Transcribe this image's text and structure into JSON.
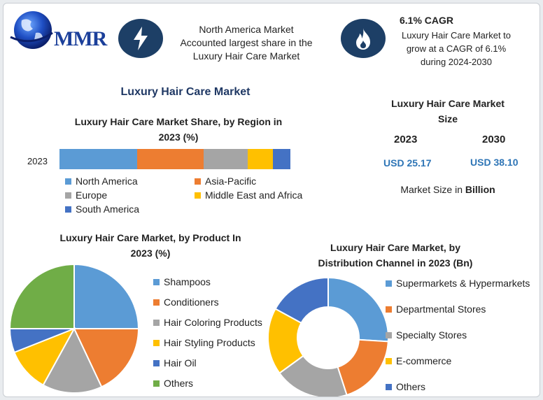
{
  "header": {
    "logo_text": "MMR",
    "north_america_text": [
      "North America Market",
      "Accounted largest share in the",
      "Luxury Hair Care Market"
    ],
    "cagr_title": "6.1% CAGR",
    "cagr_text": [
      "Luxury Hair Care Market to",
      "grow at a CAGR of 6.1%",
      "during 2024-2030"
    ],
    "icons": [
      "globe-icon",
      "lightning-icon",
      "flame-icon"
    ],
    "badge_color": "#1d3f66"
  },
  "main_title": "Luxury Hair Care Market",
  "region": {
    "title_line1": "Luxury Hair Care Market Share, by Region in",
    "title_line2": "2023 (%)",
    "year_label": "2023"
  },
  "market_size": {
    "title_line1": "Luxury Hair Care Market",
    "title_line2": "Size",
    "year1": "2023",
    "year2": "2030",
    "value1": "USD 25.17",
    "value2": "USD 38.10",
    "unit_prefix": "Market Size in ",
    "unit_bold": "Billion"
  },
  "product": {
    "title_line1": "Luxury Hair Care Market, by Product In",
    "title_line2": "2023 (%)"
  },
  "distribution": {
    "title_line1": "Luxury Hair Care Market, by",
    "title_line2": "Distribution Channel in 2023 (Bn)"
  },
  "chart_data": [
    {
      "type": "bar",
      "orientation": "horizontal-stacked",
      "categories": [
        "2023"
      ],
      "series": [
        {
          "name": "North America",
          "values": [
            33.5
          ],
          "color": "#5b9bd5"
        },
        {
          "name": "Asia-Pacific",
          "values": [
            29.0
          ],
          "color": "#ed7d31"
        },
        {
          "name": "Europe",
          "values": [
            19.0
          ],
          "color": "#a5a5a5"
        },
        {
          "name": "Middle East and Africa",
          "values": [
            11.0
          ],
          "color": "#ffc000"
        },
        {
          "name": "South America",
          "values": [
            7.5
          ],
          "color": "#4472c4"
        }
      ],
      "legend": "bottom"
    },
    {
      "type": "pie",
      "labels": [
        "Shampoos",
        "Conditioners",
        "Hair Coloring Products",
        "Hair Styling Products",
        "Hair Oil",
        "Others"
      ],
      "values": [
        25,
        18,
        15,
        11,
        6,
        25
      ],
      "colors": [
        "#5b9bd5",
        "#ed7d31",
        "#a5a5a5",
        "#ffc000",
        "#4472c4",
        "#70ad47"
      ],
      "legend": "right"
    },
    {
      "type": "pie",
      "variant": "donut",
      "labels": [
        "Supermarkets & Hypermarkets",
        "Departmental Stores",
        "Specialty Stores",
        "E-commerce",
        "Others"
      ],
      "values": [
        26,
        19,
        20,
        18,
        17
      ],
      "colors": [
        "#5b9bd5",
        "#ed7d31",
        "#a5a5a5",
        "#ffc000",
        "#4472c4"
      ],
      "legend": "right"
    }
  ]
}
